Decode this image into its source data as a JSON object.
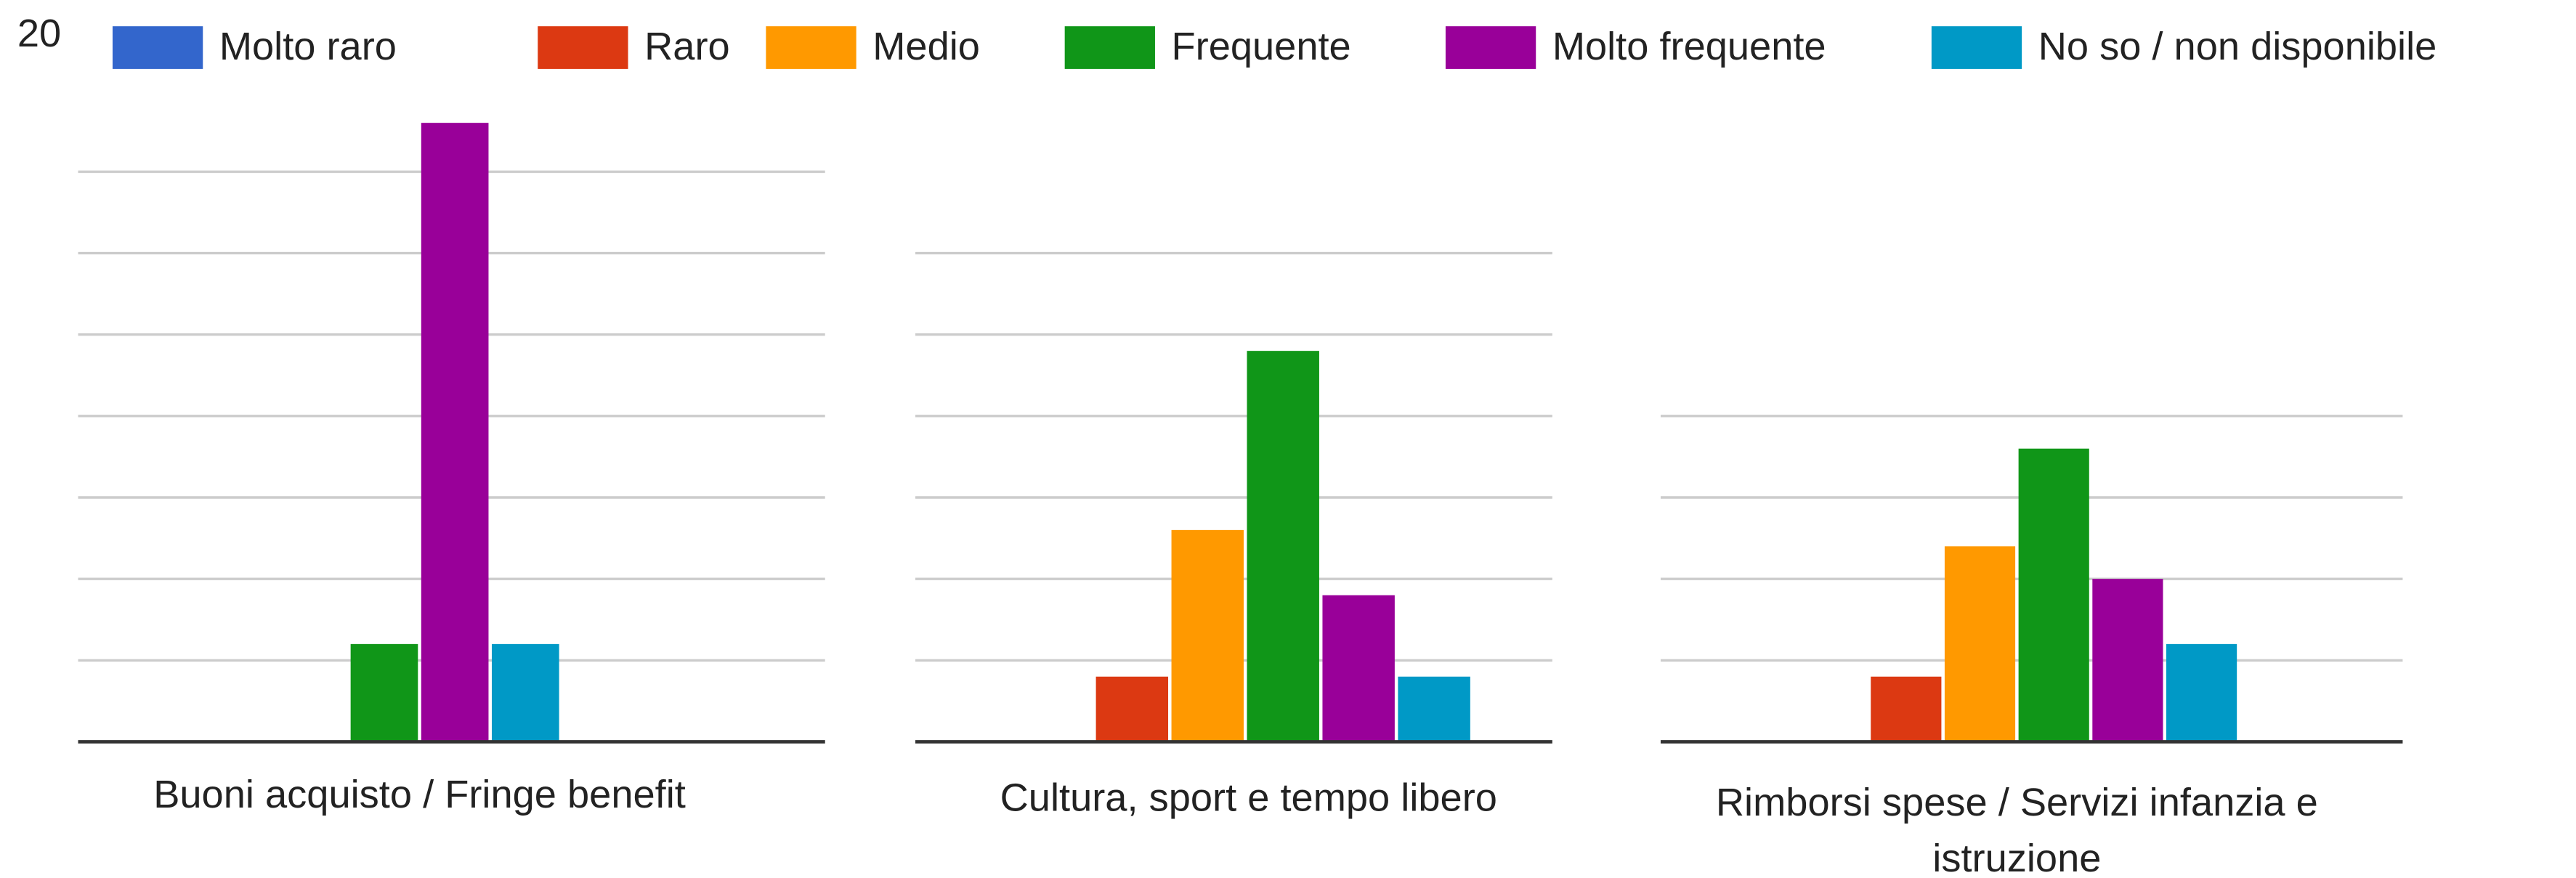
{
  "chart_data": {
    "type": "bar",
    "categories": [
      "Buoni acquisto / Fringe benefit",
      "Cultura, sport e tempo libero",
      "Rimborsi spese / Servizi infanzia e istruzione"
    ],
    "series": [
      {
        "name": "Molto raro",
        "color": "#3366cc",
        "values": [
          0,
          0,
          0
        ]
      },
      {
        "name": "Raro",
        "color": "#dc3912",
        "values": [
          0,
          2,
          2
        ]
      },
      {
        "name": "Medio",
        "color": "#ff9900",
        "values": [
          0,
          6.5,
          6
        ]
      },
      {
        "name": "Frequente",
        "color": "#109618",
        "values": [
          3,
          12,
          9
        ]
      },
      {
        "name": "Molto frequente",
        "color": "#990099",
        "values": [
          19,
          4.5,
          5
        ]
      },
      {
        "name": "No so / non disponibile",
        "color": "#0099c6",
        "values": [
          3,
          2,
          3
        ]
      }
    ],
    "ylim": [
      0,
      20
    ],
    "yticks": [
      20
    ],
    "grid": true,
    "legend": "top"
  }
}
